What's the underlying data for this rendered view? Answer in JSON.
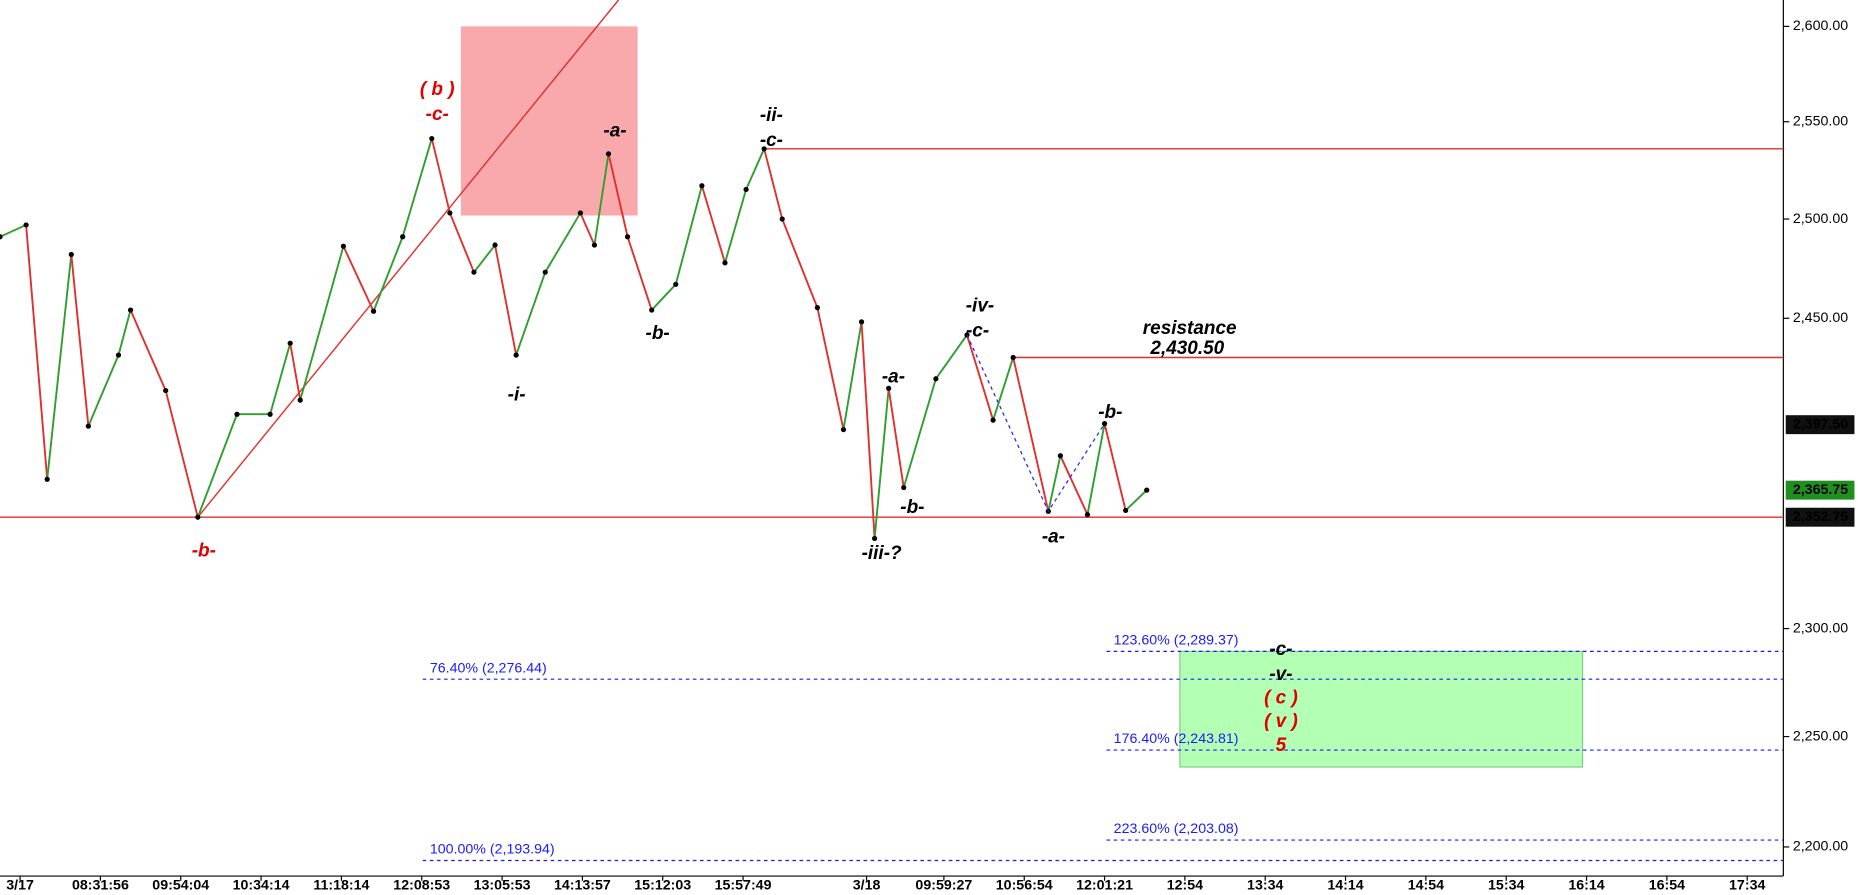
{
  "chart_data": {
    "type": "line",
    "log_scale": true,
    "xlim": [
      0,
      177.6
    ],
    "ylim": [
      2187,
      2614
    ],
    "xticks": [
      {
        "value": 2,
        "label": "3/17"
      },
      {
        "value": 10,
        "label": "08:31:56"
      },
      {
        "value": 18,
        "label": "09:54:04"
      },
      {
        "value": 26,
        "label": "10:34:14"
      },
      {
        "value": 34,
        "label": "11:18:14"
      },
      {
        "value": 42,
        "label": "12:08:53"
      },
      {
        "value": 50,
        "label": "13:05:53"
      },
      {
        "value": 58,
        "label": "14:13:57"
      },
      {
        "value": 66,
        "label": "15:12:03"
      },
      {
        "value": 74,
        "label": "15:57:49"
      },
      {
        "value": 86.3,
        "label": "3/18"
      },
      {
        "value": 94,
        "label": "09:59:27"
      },
      {
        "value": 102,
        "label": "10:56:54"
      },
      {
        "value": 110,
        "label": "12:01:21"
      },
      {
        "value": 118,
        "label": "12:54"
      },
      {
        "value": 126,
        "label": "13:34"
      },
      {
        "value": 134,
        "label": "14:14"
      },
      {
        "value": 142,
        "label": "14:54"
      },
      {
        "value": 150,
        "label": "15:34"
      },
      {
        "value": 158,
        "label": "16:14"
      },
      {
        "value": 166,
        "label": "16:54"
      },
      {
        "value": 174,
        "label": "17:34"
      }
    ],
    "yticks": [
      {
        "value": 2600,
        "label": "2,600.00"
      },
      {
        "value": 2550,
        "label": "2,550.00"
      },
      {
        "value": 2500,
        "label": "2,500.00"
      },
      {
        "value": 2450,
        "label": "2,450.00"
      },
      {
        "value": 2300,
        "label": "2,300.00"
      },
      {
        "value": 2250,
        "label": "2,250.00"
      },
      {
        "value": 2200,
        "label": "2,200.00"
      }
    ],
    "up_color": "#2e9e2e",
    "down_color": "#e03030",
    "x": [
      0,
      2.6,
      4.7,
      7.1,
      8.8,
      11.8,
      13,
      16.5,
      19.7,
      23.6,
      26.9,
      28.9,
      29.9,
      34.2,
      37.2,
      40.1,
      43,
      44.8,
      47.2,
      49.3,
      51.4,
      54.3,
      57.8,
      59.2,
      60.6,
      62.5,
      64.9,
      67.3,
      69.9,
      72.2,
      74.3,
      76.1,
      77.9,
      81.4,
      84,
      85.8,
      87.1,
      88.5,
      90,
      93.2,
      96.3,
      98.9,
      100.9,
      104.4,
      105.6,
      108.3,
      110,
      112.1,
      114.2
    ],
    "values": [
      2491.0,
      2497.0,
      2371.0,
      2482.0,
      2396.8,
      2431.7,
      2454.1,
      2414.2,
      2352.75,
      2402.6,
      2402.6,
      2437.6,
      2409.5,
      2486.2,
      2453.5,
      2491.0,
      2541.3,
      2503.1,
      2473.1,
      2486.8,
      2431.7,
      2473.1,
      2503.1,
      2486.8,
      2533.4,
      2491.0,
      2454.1,
      2467.0,
      2517.0,
      2477.8,
      2515.1,
      2536,
      2500.0,
      2455.3,
      2395.1,
      2448.2,
      2342.6,
      2415.3,
      2367.0,
      2420.0,
      2441.7,
      2399.7,
      2430.5,
      2355.6,
      2382.4,
      2354.0,
      2398.0,
      2356.0,
      2365.75
    ],
    "price_tags": [
      {
        "value": 2397.5,
        "label": "2,397.50",
        "color": "#111111"
      },
      {
        "value": 2365.75,
        "label": "2,365.75",
        "color": "#1f8f1f"
      },
      {
        "value": 2352.75,
        "label": "2,352.75",
        "color": "#111111"
      }
    ],
    "horizontal_lines": [
      {
        "value": 2352.75,
        "from": 0
      },
      {
        "value": 2536,
        "from": 76.1
      },
      {
        "value": 2430.5,
        "from": 100.9
      }
    ],
    "line_color": "#e03030",
    "trend_line": {
      "x": [
        19.7,
        61.6
      ],
      "values": [
        2352.75,
        2614
      ]
    },
    "dashed_path": {
      "x": [
        96.3,
        104.4,
        110
      ],
      "values": [
        2441.7,
        2355.6,
        2398.0
      ],
      "color": "#1a1aff"
    },
    "fib_levels": [
      {
        "label": "123.60% (2,289.37)",
        "value": 2289.37,
        "from": 110.2
      },
      {
        "label": "76.40% (2,276.44)",
        "value": 2276.44,
        "from": 42.1
      },
      {
        "label": "176.40% (2,243.81)",
        "value": 2243.81,
        "from": 110.2
      },
      {
        "label": "223.60% (2,203.08)",
        "value": 2203.08,
        "from": 110.2
      },
      {
        "label": "100.00% (2,193.94)",
        "value": 2193.94,
        "from": 42.1
      }
    ],
    "boxes": [
      {
        "x": [
          45.9,
          63.5
        ],
        "values": [
          2600,
          2501.8
        ],
        "color": "#f9a9ab"
      },
      {
        "x": [
          117.5,
          157.6
        ],
        "values": [
          2289.37,
          2236.1
        ],
        "color": "#b3ffb3"
      }
    ],
    "annotations": [
      {
        "text": "( b )",
        "color": "#e00000"
      },
      {
        "text": "-c-",
        "color": "#e00000"
      },
      {
        "text": "-a-",
        "color": "#000"
      },
      {
        "text": "-ii-",
        "color": "#000"
      },
      {
        "text": "-c-",
        "color": "#000"
      },
      {
        "text": "-b-",
        "color": "#000"
      },
      {
        "text": "-i-",
        "color": "#000"
      },
      {
        "text": "-b-",
        "color": "#e00000"
      },
      {
        "text": "-iv-",
        "color": "#000"
      },
      {
        "text": "-c-",
        "color": "#000"
      },
      {
        "text": "-a-",
        "color": "#000"
      },
      {
        "text": "-b-",
        "color": "#000"
      },
      {
        "text": "-iii-?",
        "color": "#000"
      },
      {
        "text": "-b-",
        "color": "#000"
      },
      {
        "text": "-a-",
        "color": "#000"
      },
      {
        "text": "resistance",
        "color": "#000"
      },
      {
        "text": "2,430.50",
        "color": "#000"
      },
      {
        "text": "-c-",
        "color": "#000"
      },
      {
        "text": "-v-",
        "color": "#000"
      },
      {
        "text": "( c )",
        "color": "#e00000"
      },
      {
        "text": "( v )",
        "color": "#e00000"
      },
      {
        "text": "5",
        "color": "#e00000"
      }
    ]
  }
}
